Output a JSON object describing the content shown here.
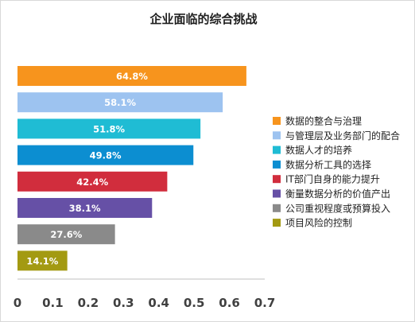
{
  "chart_data": {
    "type": "bar",
    "orientation": "horizontal",
    "title": "企业面临的综合挑战",
    "categories": [
      "数据的整合与治理",
      "与管理层及业务部门的配合",
      "数据人才的培养",
      "数据分析工具的选择",
      "IT部门自身的能力提升",
      "衡量数据分析的价值产出",
      "公司重视程度或预算投入",
      "项目风险的控制"
    ],
    "values": [
      0.648,
      0.581,
      0.518,
      0.498,
      0.424,
      0.381,
      0.276,
      0.141
    ],
    "data_labels": [
      "64.8%",
      "58.1%",
      "51.8%",
      "49.8%",
      "42.4%",
      "38.1%",
      "27.6%",
      "14.1%"
    ],
    "colors": [
      "#f7941d",
      "#9dc3f0",
      "#1fbcd4",
      "#0c8ed1",
      "#d12d3d",
      "#6650a6",
      "#8a8a8a",
      "#a39a12"
    ],
    "xlim": [
      0,
      0.7
    ],
    "x_ticks": [
      "0",
      "0.1",
      "0.2",
      "0.3",
      "0.4",
      "0.5",
      "0.6",
      "0.7"
    ],
    "xlabel": "",
    "ylabel": "",
    "legend_position": "right",
    "grid": false
  }
}
